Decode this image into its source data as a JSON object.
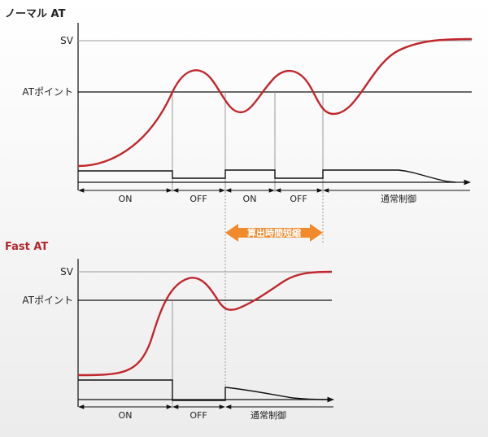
{
  "normal_panel": {
    "title": "ノーマル AT",
    "sv_label": "SV",
    "at_point_label": "ATポイント",
    "segments": [
      "ON",
      "OFF",
      "ON",
      "OFF",
      "通常制御"
    ]
  },
  "fast_panel": {
    "title": "Fast AT",
    "sv_label": "SV",
    "at_point_label": "ATポイント",
    "segments": [
      "ON",
      "OFF",
      "通常制御"
    ]
  },
  "badge": {
    "label": "算出時間短縮"
  },
  "colors": {
    "temperature_curve": "#c0272d",
    "fast_title": "#b3282d",
    "badge_fill": "#f08a2c",
    "line": "#111111",
    "grid": "#9a9a9a"
  }
}
